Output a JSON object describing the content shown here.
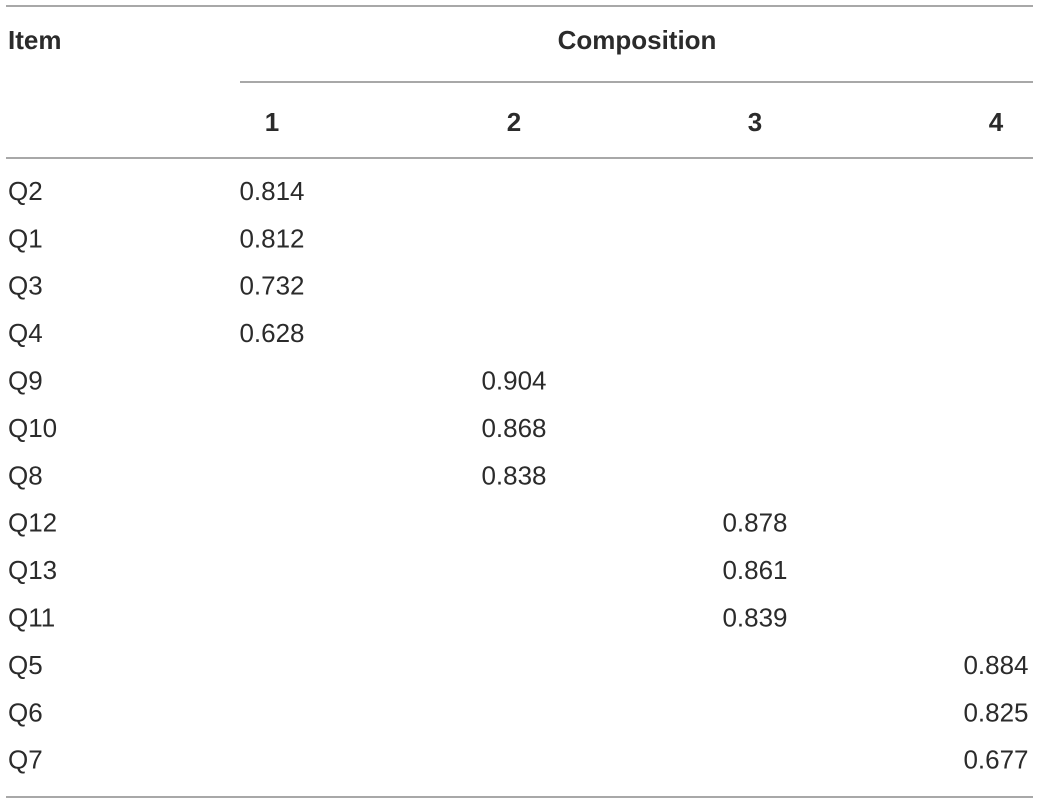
{
  "table": {
    "header": {
      "item": "Item",
      "group": "Composition"
    },
    "columns": [
      "1",
      "2",
      "3",
      "4"
    ],
    "rows": [
      [
        "Q2",
        "0.814",
        null,
        null,
        null
      ],
      [
        "Q1",
        "0.812",
        null,
        null,
        null
      ],
      [
        "Q3",
        "0.732",
        null,
        null,
        null
      ],
      [
        "Q4",
        "0.628",
        null,
        null,
        null
      ],
      [
        "Q9",
        null,
        "0.904",
        null,
        null
      ],
      [
        "Q10",
        null,
        "0.868",
        null,
        null
      ],
      [
        "Q8",
        null,
        "0.838",
        null,
        null
      ],
      [
        "Q12",
        null,
        null,
        "0.878",
        null
      ],
      [
        "Q13",
        null,
        null,
        "0.861",
        null
      ],
      [
        "Q11",
        null,
        null,
        "0.839",
        null
      ],
      [
        "Q5",
        null,
        null,
        null,
        "0.884"
      ],
      [
        "Q6",
        null,
        null,
        null,
        "0.825"
      ],
      [
        "Q7",
        null,
        null,
        null,
        "0.677"
      ]
    ]
  }
}
